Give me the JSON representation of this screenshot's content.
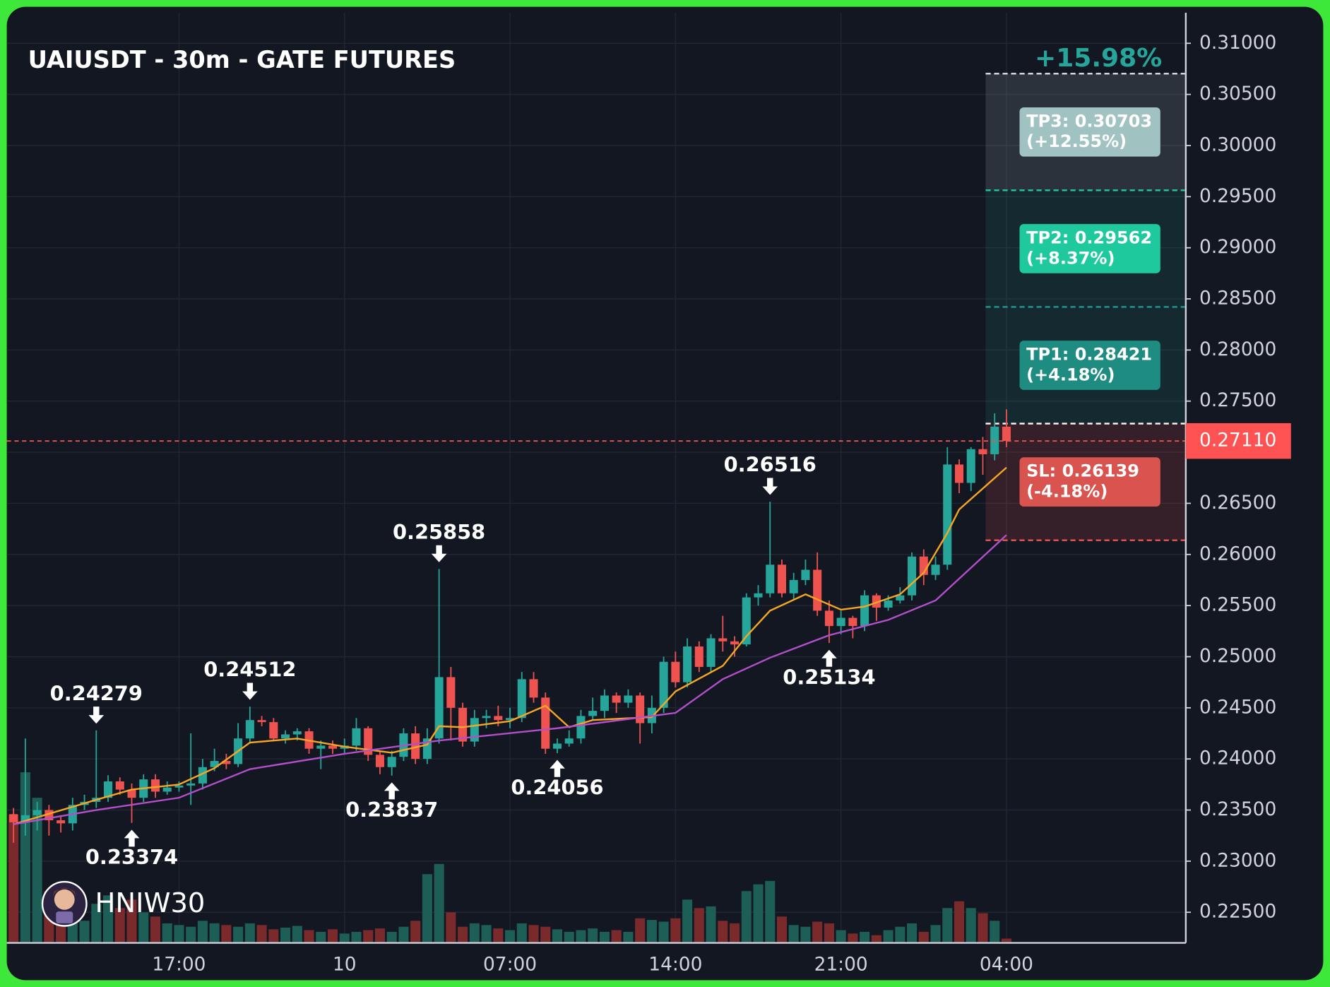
{
  "chart_data": {
    "type": "candlestick",
    "title": "UAIUSDT - 30m - GATE FUTURES",
    "open": [
      0.2346,
      0.2338,
      0.2345,
      0.235,
      0.234,
      0.2337,
      0.2355,
      0.2358,
      0.2362,
      0.2378,
      0.237,
      0.2362,
      0.238,
      0.2368,
      0.2372,
      0.2374,
      0.2376,
      0.2392,
      0.2398,
      0.2395,
      0.242,
      0.2438,
      0.2436,
      0.242,
      0.2424,
      0.2427,
      0.241,
      0.2413,
      0.241,
      0.2413,
      0.243,
      0.2404,
      0.2392,
      0.2402,
      0.2425,
      0.24,
      0.242,
      0.248,
      0.245,
      0.2417,
      0.244,
      0.2442,
      0.2438,
      0.244,
      0.2478,
      0.246,
      0.241,
      0.2415,
      0.242,
      0.2442,
      0.2447,
      0.2462,
      0.2455,
      0.2462,
      0.2435,
      0.245,
      0.2495,
      0.2475,
      0.251,
      0.249,
      0.2518,
      0.2515,
      0.2512,
      0.2558,
      0.2562,
      0.259,
      0.2562,
      0.2575,
      0.2585,
      0.2545,
      0.253,
      0.2538,
      0.253,
      0.256,
      0.2548,
      0.2555,
      0.256,
      0.2598,
      0.258,
      0.259,
      0.2688,
      0.267,
      0.2703,
      0.2698,
      0.2725
    ],
    "high": [
      0.2352,
      0.242,
      0.2358,
      0.2355,
      0.2345,
      0.2362,
      0.2365,
      0.24279,
      0.2384,
      0.2382,
      0.2376,
      0.2385,
      0.2385,
      0.2378,
      0.2378,
      0.2425,
      0.24,
      0.241,
      0.2405,
      0.2435,
      0.24512,
      0.2442,
      0.244,
      0.2428,
      0.243,
      0.243,
      0.2418,
      0.2418,
      0.242,
      0.244,
      0.2432,
      0.2408,
      0.2408,
      0.243,
      0.2432,
      0.243,
      0.25858,
      0.249,
      0.2455,
      0.2448,
      0.2448,
      0.2452,
      0.245,
      0.2485,
      0.2485,
      0.2465,
      0.242,
      0.2428,
      0.2448,
      0.246,
      0.2468,
      0.2465,
      0.2468,
      0.2465,
      0.2462,
      0.25,
      0.2505,
      0.2518,
      0.2515,
      0.2522,
      0.254,
      0.252,
      0.2562,
      0.257,
      0.26516,
      0.2595,
      0.2582,
      0.2595,
      0.2602,
      0.2555,
      0.2545,
      0.254,
      0.2565,
      0.2562,
      0.256,
      0.2568,
      0.2602,
      0.2605,
      0.2598,
      0.2705,
      0.2693,
      0.2705,
      0.2715,
      0.2738,
      0.2742
    ],
    "low": [
      0.2318,
      0.2325,
      0.233,
      0.2325,
      0.2328,
      0.233,
      0.235,
      0.2352,
      0.2358,
      0.2365,
      0.23374,
      0.2358,
      0.2362,
      0.2365,
      0.2368,
      0.2355,
      0.237,
      0.2388,
      0.239,
      0.2392,
      0.2415,
      0.2432,
      0.2418,
      0.2415,
      0.2418,
      0.2405,
      0.239,
      0.2405,
      0.2405,
      0.2408,
      0.2398,
      0.2385,
      0.23837,
      0.2398,
      0.2395,
      0.2395,
      0.2415,
      0.2418,
      0.2412,
      0.2412,
      0.243,
      0.2432,
      0.243,
      0.2436,
      0.2455,
      0.2405,
      0.24056,
      0.2412,
      0.2415,
      0.2438,
      0.244,
      0.2445,
      0.245,
      0.2415,
      0.2425,
      0.2445,
      0.247,
      0.247,
      0.2485,
      0.2485,
      0.2505,
      0.25,
      0.251,
      0.255,
      0.2558,
      0.2558,
      0.2555,
      0.257,
      0.254,
      0.25134,
      0.2522,
      0.2518,
      0.2525,
      0.2535,
      0.2545,
      0.2552,
      0.2555,
      0.257,
      0.2575,
      0.2585,
      0.266,
      0.2662,
      0.2678,
      0.2692,
      0.2705
    ],
    "close": [
      0.2338,
      0.2345,
      0.235,
      0.234,
      0.2337,
      0.2355,
      0.2358,
      0.2362,
      0.2378,
      0.237,
      0.2362,
      0.238,
      0.2368,
      0.2372,
      0.2374,
      0.2376,
      0.2392,
      0.2398,
      0.2395,
      0.242,
      0.2438,
      0.2436,
      0.242,
      0.2424,
      0.2427,
      0.241,
      0.2413,
      0.241,
      0.2413,
      0.243,
      0.2404,
      0.2392,
      0.2402,
      0.2425,
      0.24,
      0.242,
      0.248,
      0.245,
      0.2417,
      0.244,
      0.2442,
      0.2438,
      0.244,
      0.2478,
      0.246,
      0.241,
      0.2415,
      0.242,
      0.2442,
      0.2447,
      0.2462,
      0.2455,
      0.2462,
      0.2435,
      0.245,
      0.2495,
      0.2475,
      0.251,
      0.249,
      0.2518,
      0.2515,
      0.2512,
      0.2558,
      0.2562,
      0.259,
      0.2562,
      0.2575,
      0.2585,
      0.2545,
      0.253,
      0.2538,
      0.253,
      0.256,
      0.2548,
      0.2555,
      0.256,
      0.2598,
      0.258,
      0.259,
      0.2688,
      0.267,
      0.2703,
      0.2698,
      0.2725,
      0.2711
    ],
    "volume": [
      150,
      200,
      170,
      60,
      40,
      30,
      25,
      45,
      55,
      40,
      50,
      35,
      30,
      22,
      20,
      18,
      25,
      22,
      20,
      18,
      22,
      20,
      15,
      17,
      19,
      14,
      12,
      15,
      10,
      12,
      14,
      16,
      12,
      18,
      25,
      80,
      92,
      35,
      18,
      22,
      20,
      16,
      14,
      22,
      20,
      18,
      15,
      12,
      14,
      16,
      12,
      14,
      12,
      28,
      26,
      24,
      28,
      50,
      40,
      42,
      25,
      22,
      60,
      68,
      72,
      30,
      20,
      18,
      24,
      22,
      14,
      10,
      12,
      8,
      14,
      18,
      22,
      12,
      20,
      40,
      48,
      40,
      34,
      25,
      4
    ],
    "up_color": "#26a69a",
    "down_color": "#ef5350",
    "volume_up_color": "#1d5e57",
    "volume_down_color": "#7b2a2c",
    "xlim": [
      -0.57,
      99.1
    ],
    "xticks": [
      {
        "value": 14,
        "label": "17:00"
      },
      {
        "value": 28,
        "label": "10"
      },
      {
        "value": 42,
        "label": "07:00"
      },
      {
        "value": 56,
        "label": "14:00"
      },
      {
        "value": 70,
        "label": "21:00"
      },
      {
        "value": 84,
        "label": "04:00"
      }
    ],
    "ylim": [
      0.22209,
      0.31299
    ],
    "yticks": [
      {
        "value": 0.225,
        "label": "0.22500"
      },
      {
        "value": 0.23,
        "label": "0.23000"
      },
      {
        "value": 0.235,
        "label": "0.23500"
      },
      {
        "value": 0.24,
        "label": "0.24000"
      },
      {
        "value": 0.245,
        "label": "0.24500"
      },
      {
        "value": 0.25,
        "label": "0.25000"
      },
      {
        "value": 0.255,
        "label": "0.25500"
      },
      {
        "value": 0.26,
        "label": "0.26000"
      },
      {
        "value": 0.265,
        "label": "0.26500"
      },
      {
        "value": 0.27,
        "label": "0.27000"
      },
      {
        "value": 0.275,
        "label": "0.27500"
      },
      {
        "value": 0.28,
        "label": "0.28000"
      },
      {
        "value": 0.285,
        "label": "0.28500"
      },
      {
        "value": 0.29,
        "label": "0.29000"
      },
      {
        "value": 0.295,
        "label": "0.29500"
      },
      {
        "value": 0.3,
        "label": "0.30000"
      },
      {
        "value": 0.305,
        "label": "0.30500"
      },
      {
        "value": 0.31,
        "label": "0.31000"
      }
    ],
    "grid": true,
    "lines": [
      {
        "color": "#f5a623",
        "x": [
          0,
          7,
          10,
          14,
          17,
          20,
          24,
          28,
          32,
          35,
          36,
          38,
          42,
          45,
          47,
          49,
          54,
          56,
          60,
          62,
          64,
          67,
          70,
          72,
          75,
          77,
          79,
          80,
          84
        ],
        "values": [
          0.2336,
          0.236,
          0.237,
          0.2375,
          0.2391,
          0.2416,
          0.242,
          0.2412,
          0.2406,
          0.2414,
          0.2432,
          0.2431,
          0.2437,
          0.2452,
          0.2431,
          0.2438,
          0.2441,
          0.2466,
          0.2491,
          0.252,
          0.2545,
          0.2561,
          0.2546,
          0.2549,
          0.2561,
          0.2582,
          0.2621,
          0.2644,
          0.2685
        ]
      },
      {
        "color": "#b24fc9",
        "x": [
          0,
          7,
          14,
          20,
          28,
          36,
          46,
          56,
          60,
          64,
          69,
          74,
          78,
          84
        ],
        "values": [
          0.2336,
          0.235,
          0.2362,
          0.239,
          0.2405,
          0.2418,
          0.243,
          0.2445,
          0.2478,
          0.2499,
          0.2521,
          0.2536,
          0.2555,
          0.2619
        ]
      }
    ],
    "annotations": [
      {
        "x": 7,
        "value": 0.24279
      },
      {
        "x": 10,
        "value": 0.23374
      },
      {
        "x": 20,
        "value": 0.24512
      },
      {
        "x": 32,
        "value": 0.23837
      },
      {
        "x": 36,
        "value": 0.25858
      },
      {
        "x": 46,
        "value": 0.24056
      },
      {
        "x": 64,
        "value": 0.26516
      },
      {
        "x": 69,
        "value": 0.25134
      }
    ],
    "last_price": {
      "value": 0.2711,
      "label": "0.27110"
    },
    "entry": 0.2728,
    "targets": [
      {
        "label": [
          "TP3: 0.30703",
          "(+12.55%)"
        ],
        "value": 0.30703,
        "color": "#a0c2c0",
        "line_color": "#d1d4dc",
        "zone_color": "rgba(120,130,140,0.25)"
      },
      {
        "label": [
          "TP2: 0.29562",
          "(+8.37%)"
        ],
        "value": 0.29562,
        "color": "#1ec99d",
        "line_color": "#26c6a0",
        "zone_color": "rgba(38,166,154,0.13)"
      },
      {
        "label": [
          "TP1: 0.28421",
          "(+4.18%)"
        ],
        "value": 0.28421,
        "color": "#1e8c80",
        "line_color": "#1e9c8c",
        "zone_color": "rgba(38,166,154,0.13)"
      },
      {
        "label": [
          "SL: 0.26139",
          "(-4.18%)"
        ],
        "value": 0.26139,
        "color": "#d9534f",
        "line_color": "#ef5350",
        "zone_color": "rgba(239,83,80,0.16)"
      }
    ],
    "target_total": "+15.98%",
    "watermark": "HNIW30"
  }
}
